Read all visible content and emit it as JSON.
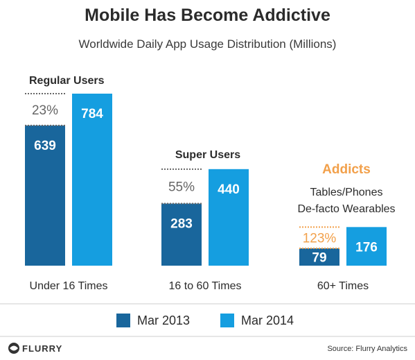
{
  "title": "Mobile Has Become Addictive",
  "subtitle": "Worldwide Daily App Usage Distribution (Millions)",
  "colors": {
    "mar2013": "#19669c",
    "mar2014": "#159ee0",
    "addicts": "#f2a04a",
    "text": "#2b2b2b",
    "growth": "#666666",
    "divider": "#cccccc"
  },
  "chart_data": {
    "type": "bar",
    "categories": [
      "Under 16 Times",
      "16 to 60 Times",
      "60+ Times"
    ],
    "series": [
      {
        "name": "Mar 2013",
        "values": [
          639,
          283,
          79
        ]
      },
      {
        "name": "Mar 2014",
        "values": [
          784,
          440,
          176
        ]
      }
    ],
    "growth_labels": [
      "23%",
      "55%",
      "123%"
    ],
    "group_labels": [
      "Regular Users",
      "Super Users",
      "Addicts"
    ],
    "addicts_note": [
      "Tables/Phones",
      "De-facto Wearables"
    ],
    "legend": [
      "Mar 2013",
      "Mar 2014"
    ],
    "legend_position": "bottom"
  },
  "footer": {
    "logo_text": "FLURRY",
    "source": "Source: Flurry Analytics"
  }
}
